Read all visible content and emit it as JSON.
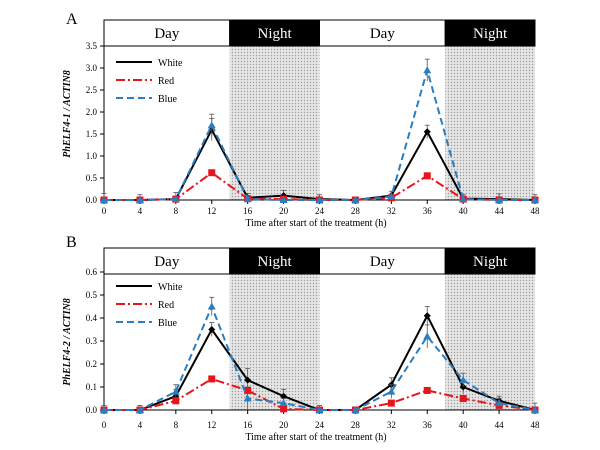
{
  "colors": {
    "white_series": "#000000",
    "red_series": "#e8141b",
    "blue_series": "#2a7ec1",
    "night_band": "#d9d9d9",
    "night_header": "#000000"
  },
  "chart_data": [
    {
      "panel": "A",
      "type": "line",
      "ylabel": "PhELF4-1 / ACTIN8",
      "xlabel": "Time after start of the treatment (h)",
      "x": [
        0,
        4,
        8,
        12,
        16,
        20,
        24,
        28,
        32,
        36,
        40,
        44,
        48
      ],
      "xlim": [
        0,
        48
      ],
      "ylim": [
        0,
        3.5
      ],
      "yticks": [
        "0.0",
        "0.5",
        "1.0",
        "1.5",
        "2.0",
        "2.5",
        "3.0",
        "3.5"
      ],
      "xticks": [
        "0",
        "4",
        "8",
        "12",
        "16",
        "20",
        "24",
        "28",
        "32",
        "36",
        "40",
        "44",
        "48"
      ],
      "periods": [
        {
          "label": "Day",
          "start": 0,
          "end": 14,
          "type": "day"
        },
        {
          "label": "Night",
          "start": 14,
          "end": 24,
          "type": "night"
        },
        {
          "label": "Day",
          "start": 24,
          "end": 38,
          "type": "day"
        },
        {
          "label": "Night",
          "start": 38,
          "end": 48,
          "type": "night"
        }
      ],
      "legend_position": "top-left",
      "series": [
        {
          "name": "White",
          "color": "#000000",
          "dash": "solid",
          "marker": "diamond",
          "values": [
            0.0,
            0.0,
            0.02,
            1.6,
            0.05,
            0.1,
            0.02,
            0.0,
            0.1,
            1.55,
            0.03,
            0.02,
            0.0
          ],
          "errors": [
            0.15,
            0.12,
            0.15,
            0.25,
            0.1,
            0.12,
            0.1,
            0.05,
            0.1,
            0.15,
            0.1,
            0.12,
            0.12
          ]
        },
        {
          "name": "Red",
          "color": "#e8141b",
          "dash": "dashdot",
          "marker": "square",
          "values": [
            0.0,
            0.0,
            0.02,
            0.62,
            0.03,
            0.02,
            0.0,
            0.0,
            0.05,
            0.55,
            0.02,
            0.0,
            0.0
          ],
          "errors": [
            0,
            0,
            0,
            0,
            0,
            0,
            0,
            0,
            0,
            0,
            0,
            0,
            0
          ]
        },
        {
          "name": "Blue",
          "color": "#2a7ec1",
          "dash": "dashed",
          "marker": "triangle",
          "values": [
            0.0,
            0.0,
            0.02,
            1.7,
            0.02,
            0.0,
            0.0,
            0.0,
            0.08,
            2.95,
            0.02,
            0.0,
            0.0
          ],
          "errors": [
            0,
            0,
            0,
            0.25,
            0,
            0,
            0,
            0,
            0,
            0.25,
            0,
            0,
            0
          ]
        }
      ]
    },
    {
      "panel": "B",
      "type": "line",
      "ylabel": "PhELF4-2 / ACTIN8",
      "xlabel": "Time after start of the treatment (h)",
      "x": [
        0,
        4,
        8,
        12,
        16,
        20,
        24,
        28,
        32,
        36,
        40,
        44,
        48
      ],
      "xlim": [
        0,
        48
      ],
      "ylim": [
        0,
        0.6
      ],
      "yticks": [
        "0.0",
        "0.1",
        "0.2",
        "0.3",
        "0.4",
        "0.5",
        "0.6"
      ],
      "xticks": [
        "0",
        "4",
        "8",
        "12",
        "16",
        "20",
        "24",
        "28",
        "32",
        "36",
        "40",
        "44",
        "48"
      ],
      "periods": [
        {
          "label": "Day",
          "start": 0,
          "end": 14,
          "type": "day"
        },
        {
          "label": "Night",
          "start": 14,
          "end": 24,
          "type": "night"
        },
        {
          "label": "Day",
          "start": 24,
          "end": 38,
          "type": "day"
        },
        {
          "label": "Night",
          "start": 38,
          "end": 48,
          "type": "night"
        }
      ],
      "legend_position": "top-left",
      "series": [
        {
          "name": "White",
          "color": "#000000",
          "dash": "solid",
          "marker": "diamond",
          "values": [
            0.0,
            0.0,
            0.06,
            0.35,
            0.13,
            0.06,
            0.0,
            0.0,
            0.11,
            0.41,
            0.1,
            0.04,
            0.0
          ],
          "errors": [
            0.02,
            0.02,
            0.03,
            0.03,
            0.05,
            0.03,
            0.02,
            0.0,
            0.03,
            0.04,
            0.03,
            0.02,
            0.03
          ]
        },
        {
          "name": "Red",
          "color": "#e8141b",
          "dash": "dashdot",
          "marker": "square",
          "values": [
            0.0,
            0.0,
            0.04,
            0.135,
            0.085,
            0.005,
            0.0,
            0.0,
            0.03,
            0.085,
            0.05,
            0.02,
            0.0
          ],
          "errors": [
            0,
            0,
            0,
            0,
            0,
            0,
            0,
            0,
            0,
            0,
            0,
            0,
            0
          ]
        },
        {
          "name": "Blue",
          "color": "#2a7ec1",
          "dash": "dashed",
          "marker": "triangle",
          "values": [
            0.0,
            0.0,
            0.08,
            0.45,
            0.05,
            0.03,
            0.0,
            0.0,
            0.08,
            0.32,
            0.13,
            0.03,
            0.0
          ],
          "errors": [
            0,
            0,
            0.03,
            0.04,
            0.05,
            0.02,
            0,
            0,
            0.03,
            0.05,
            0.03,
            0.02,
            0
          ]
        }
      ]
    }
  ]
}
